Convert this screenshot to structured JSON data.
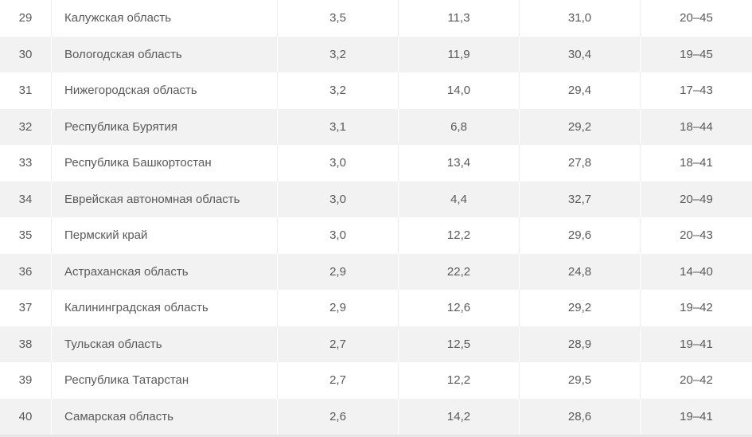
{
  "rows": [
    {
      "num": "29",
      "name": "Калужская область",
      "a": "3,5",
      "b": "11,3",
      "c": "31,0",
      "d": "20–45"
    },
    {
      "num": "30",
      "name": "Вологодская область",
      "a": "3,2",
      "b": "11,9",
      "c": "30,4",
      "d": "19–45"
    },
    {
      "num": "31",
      "name": "Нижегородская область",
      "a": "3,2",
      "b": "14,0",
      "c": "29,4",
      "d": "17–43"
    },
    {
      "num": "32",
      "name": "Республика Бурятия",
      "a": "3,1",
      "b": "6,8",
      "c": "29,2",
      "d": "18–44"
    },
    {
      "num": "33",
      "name": "Республика Башкортостан",
      "a": "3,0",
      "b": "13,4",
      "c": "27,8",
      "d": "18–41"
    },
    {
      "num": "34",
      "name": "Еврейская автономная область",
      "a": "3,0",
      "b": "4,4",
      "c": "32,7",
      "d": "20–49"
    },
    {
      "num": "35",
      "name": "Пермский край",
      "a": "3,0",
      "b": "12,2",
      "c": "29,6",
      "d": "20–43"
    },
    {
      "num": "36",
      "name": "Астраханская область",
      "a": "2,9",
      "b": "22,2",
      "c": "24,8",
      "d": "14–40"
    },
    {
      "num": "37",
      "name": "Калининградская область",
      "a": "2,9",
      "b": "12,6",
      "c": "29,2",
      "d": "19–42"
    },
    {
      "num": "38",
      "name": "Тульская область",
      "a": "2,7",
      "b": "12,5",
      "c": "28,9",
      "d": "19–41"
    },
    {
      "num": "39",
      "name": "Республика Татарстан",
      "a": "2,7",
      "b": "12,2",
      "c": "29,5",
      "d": "20–42"
    },
    {
      "num": "40",
      "name": "Самарская область",
      "a": "2,6",
      "b": "14,2",
      "c": "28,6",
      "d": "19–41"
    }
  ]
}
